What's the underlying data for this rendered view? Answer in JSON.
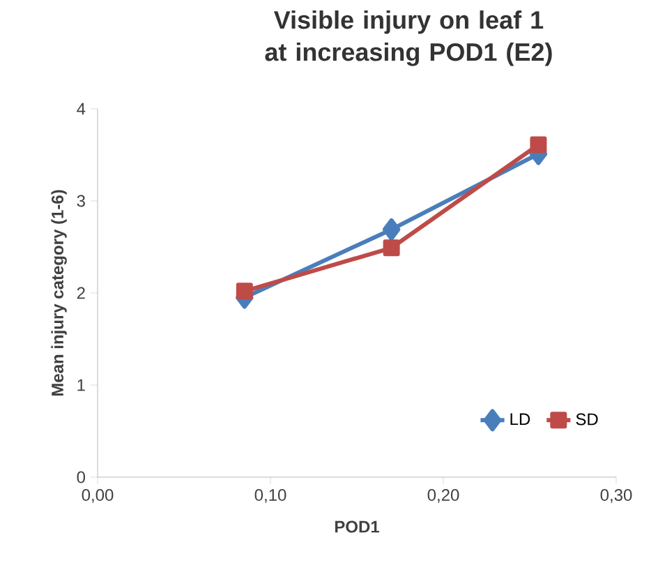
{
  "chart_data": {
    "type": "line",
    "title": "Visible injury on leaf 1 at increasing POD1 (E2)",
    "xlabel": "POD1",
    "ylabel": "Mean injury category (1-6)",
    "xlim": [
      0,
      0.3
    ],
    "xticks": [
      {
        "value": 0,
        "label": "0,00"
      },
      {
        "value": 0.1,
        "label": "0,10"
      },
      {
        "value": 0.2,
        "label": "0,20"
      },
      {
        "value": 0.3,
        "label": "0,30"
      }
    ],
    "ylim": [
      0,
      4
    ],
    "yticks": [
      0,
      1,
      2,
      3,
      4
    ],
    "grid": false,
    "legend": "bottom right",
    "line_style": "solid",
    "series": [
      {
        "name": "LD",
        "color": "#4a7ebb",
        "marker": "diamond",
        "x": [
          0.085,
          0.17,
          0.255
        ],
        "values": [
          1.95,
          2.69,
          3.51
        ]
      },
      {
        "name": "SD",
        "color": "#be4b48",
        "marker": "square",
        "x": [
          0.085,
          0.17,
          0.255
        ],
        "values": [
          2.02,
          2.49,
          3.61
        ]
      }
    ]
  }
}
